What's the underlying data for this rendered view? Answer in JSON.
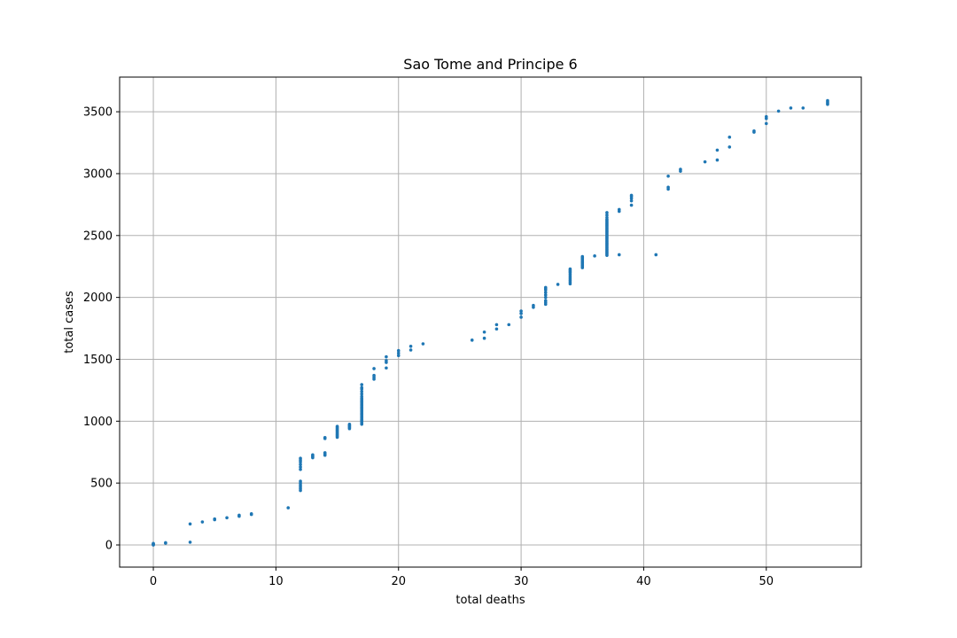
{
  "chart_data": {
    "type": "scatter",
    "title": "Sao Tome and Principe 6",
    "xlabel": "total deaths",
    "ylabel": "total cases",
    "xlim": [
      -2.75,
      57.75
    ],
    "ylim": [
      -179,
      3780
    ],
    "xticks": [
      0,
      10,
      20,
      30,
      40,
      50
    ],
    "yticks": [
      0,
      500,
      1000,
      1500,
      2000,
      2500,
      3000,
      3500
    ],
    "grid": true,
    "legend": "none",
    "point_color": "#1f77b4",
    "series": [
      {
        "x": [
          0,
          0,
          0,
          0,
          1,
          1,
          3,
          3,
          4,
          5,
          5,
          6,
          7,
          7,
          8,
          8,
          11,
          12,
          12,
          12,
          12,
          12,
          12,
          12,
          12,
          12,
          12,
          12,
          12,
          13,
          13,
          13,
          13,
          14,
          14,
          14,
          14,
          14,
          14,
          15,
          15,
          15,
          15,
          15,
          15,
          15,
          15,
          15,
          15,
          15,
          15,
          16,
          16,
          16,
          16,
          16,
          16,
          17,
          17,
          17,
          17,
          17,
          17,
          17,
          17,
          17,
          17,
          17,
          17,
          17,
          17,
          17,
          17,
          17,
          17,
          17,
          17,
          17,
          17,
          17,
          17,
          17,
          17,
          17,
          17,
          17,
          17,
          18,
          18,
          18,
          18,
          19,
          19,
          19,
          19,
          20,
          20,
          20,
          21,
          21,
          22,
          26,
          27,
          27,
          28,
          28,
          29,
          30,
          30,
          30,
          31,
          31,
          32,
          32,
          32,
          32,
          32,
          32,
          32,
          32,
          32,
          33,
          34,
          34,
          34,
          34,
          34,
          34,
          34,
          34,
          34,
          34,
          35,
          35,
          35,
          35,
          35,
          35,
          35,
          35,
          35,
          35,
          35,
          35,
          36,
          37,
          37,
          37,
          37,
          37,
          37,
          37,
          37,
          37,
          37,
          37,
          37,
          37,
          37,
          37,
          37,
          37,
          37,
          37,
          37,
          37,
          37,
          37,
          37,
          37,
          37,
          37,
          37,
          37,
          37,
          37,
          37,
          37,
          38,
          38,
          38,
          39,
          39,
          39,
          39,
          39,
          41,
          42,
          42,
          42,
          43,
          43,
          45,
          46,
          46,
          47,
          47,
          49,
          49,
          50,
          50,
          50,
          51,
          52,
          53,
          55,
          55,
          55,
          55
        ],
        "y": [
          0,
          4,
          8,
          12,
          14,
          18,
          22,
          170,
          186,
          204,
          210,
          220,
          232,
          240,
          246,
          252,
          300,
          440,
          455,
          470,
          485,
          500,
          515,
          610,
          630,
          650,
          670,
          685,
          700,
          705,
          712,
          720,
          728,
          725,
          730,
          738,
          745,
          860,
          868,
          870,
          878,
          886,
          894,
          902,
          910,
          918,
          926,
          934,
          942,
          950,
          958,
          940,
          948,
          956,
          962,
          968,
          975,
          975,
          985,
          995,
          1005,
          1015,
          1025,
          1035,
          1045,
          1055,
          1065,
          1075,
          1085,
          1095,
          1105,
          1115,
          1125,
          1135,
          1145,
          1155,
          1165,
          1175,
          1185,
          1200,
          1220,
          1240,
          1270,
          1295,
          1000,
          1010,
          1260,
          1340,
          1355,
          1370,
          1425,
          1430,
          1475,
          1490,
          1520,
          1530,
          1550,
          1570,
          1575,
          1605,
          1625,
          1655,
          1670,
          1720,
          1745,
          1780,
          1780,
          1840,
          1870,
          1890,
          1920,
          1935,
          1945,
          1960,
          1975,
          2000,
          2020,
          2040,
          2060,
          2070,
          2080,
          2105,
          2110,
          2125,
          2140,
          2155,
          2170,
          2185,
          2200,
          2210,
          2220,
          2230,
          2240,
          2250,
          2258,
          2266,
          2274,
          2282,
          2290,
          2298,
          2306,
          2314,
          2322,
          2330,
          2335,
          2340,
          2350,
          2360,
          2370,
          2380,
          2390,
          2400,
          2410,
          2420,
          2430,
          2440,
          2450,
          2460,
          2470,
          2480,
          2490,
          2500,
          2510,
          2520,
          2530,
          2540,
          2550,
          2560,
          2570,
          2580,
          2590,
          2600,
          2610,
          2620,
          2630,
          2645,
          2665,
          2685,
          2345,
          2695,
          2710,
          2745,
          2780,
          2800,
          2815,
          2825,
          2345,
          2875,
          2890,
          2980,
          3020,
          3035,
          3095,
          3110,
          3190,
          3215,
          3295,
          3335,
          3345,
          3405,
          3445,
          3460,
          3505,
          3530,
          3530,
          3560,
          3570,
          3580,
          3590
        ]
      }
    ]
  }
}
